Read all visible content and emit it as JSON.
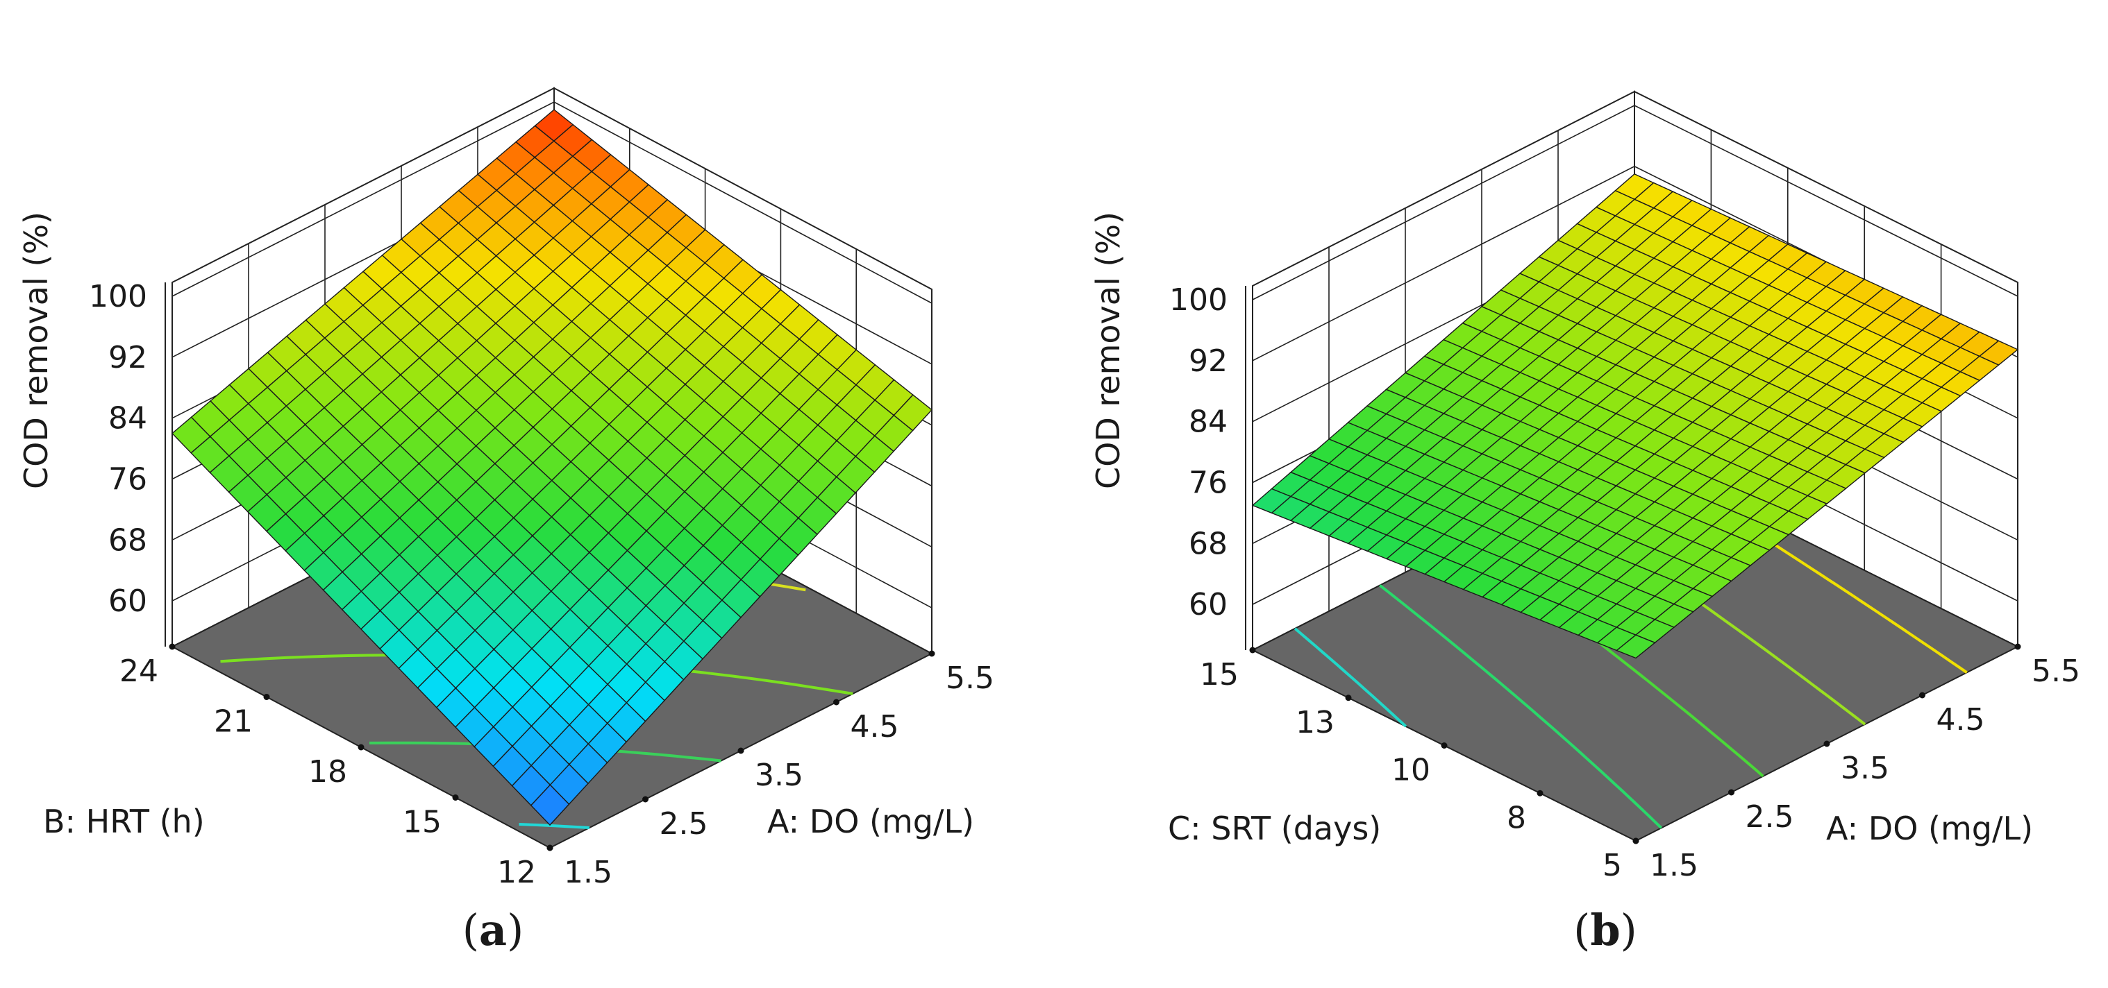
{
  "chart_data": [
    {
      "type": "surface3d",
      "panel_label": "a",
      "zlabel": "COD removal (%)",
      "xlabel": "A: DO (mg/L)",
      "ylabel": "B: HRT (h)",
      "x_ticks": [
        "1.5",
        "2.5",
        "3.5",
        "4.5",
        "5.5"
      ],
      "y_ticks": [
        "12",
        "15",
        "18",
        "21",
        "24"
      ],
      "z_ticks": [
        "60",
        "68",
        "76",
        "84",
        "92",
        "100"
      ],
      "x_range": [
        1.5,
        5.5
      ],
      "y_range": [
        12,
        24
      ],
      "z_range": [
        54,
        100
      ],
      "corner_values": {
        "x_min_y_min": 57,
        "x_max_y_min": 86,
        "x_min_y_max": 82,
        "x_max_y_max": 99
      },
      "grid_divisions": 20,
      "contour_lines": [
        {
          "level": 60,
          "color": "#21d8d8"
        },
        {
          "level": 70,
          "color": "#3ad05a"
        },
        {
          "level": 80,
          "color": "#7be020"
        },
        {
          "level": 90,
          "color": "#d8e020"
        },
        {
          "level": 97,
          "color": "#f4a300"
        }
      ],
      "colors": {
        "low": "#1e90ff",
        "high": "#ff3a00",
        "floor": "#666666"
      }
    },
    {
      "type": "surface3d",
      "panel_label": "b",
      "zlabel": "COD removal (%)",
      "xlabel": "A: DO (mg/L)",
      "ylabel": "C: SRT (days)",
      "x_ticks": [
        "1.5",
        "2.5",
        "3.5",
        "4.5",
        "5.5"
      ],
      "y_ticks": [
        "5",
        "8",
        "10",
        "13",
        "15"
      ],
      "z_ticks": [
        "60",
        "68",
        "76",
        "84",
        "92",
        "100"
      ],
      "x_range": [
        1.5,
        5.5
      ],
      "y_range": [
        5,
        15
      ],
      "z_range": [
        54,
        100
      ],
      "corner_values": {
        "x_min_y_min": 78,
        "x_max_y_min": 93,
        "x_min_y_max": 73,
        "x_max_y_max": 91
      },
      "grid_divisions": 20,
      "contour_lines": [
        {
          "level": 75,
          "color": "#21d8c8"
        },
        {
          "level": 79,
          "color": "#2ad86a"
        },
        {
          "level": 83,
          "color": "#4ad838"
        },
        {
          "level": 87,
          "color": "#9ae020"
        },
        {
          "level": 91,
          "color": "#f0e000"
        }
      ],
      "colors": {
        "low": "#1e90ff",
        "high": "#ff3a00",
        "floor": "#666666"
      }
    }
  ]
}
